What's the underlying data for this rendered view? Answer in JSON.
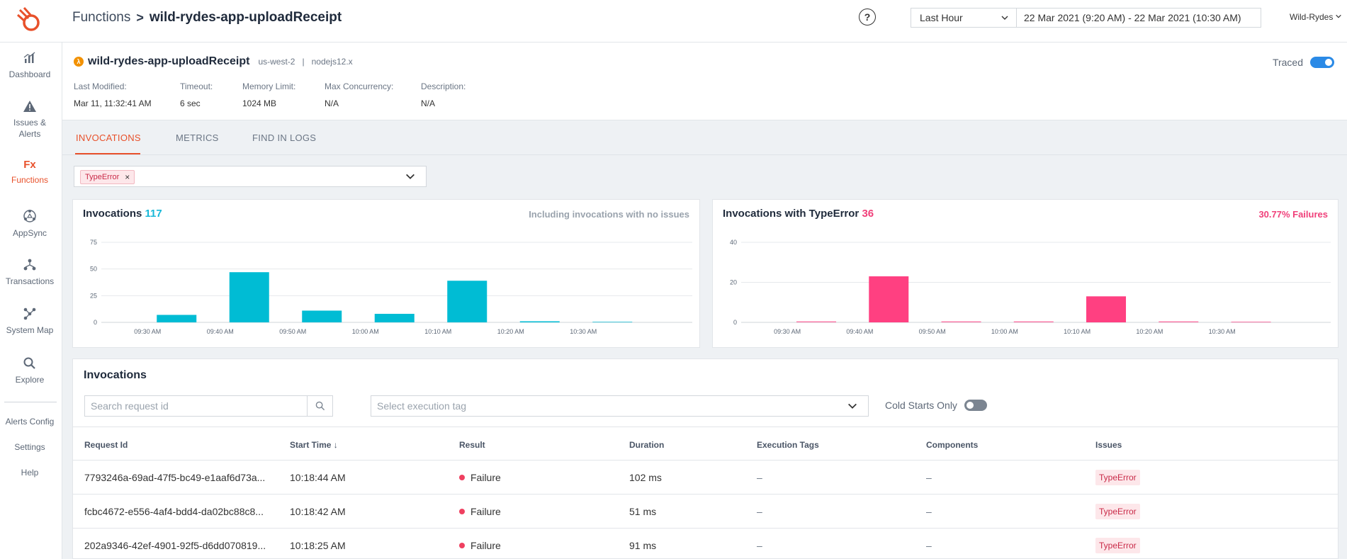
{
  "header": {
    "breadcrumb_root": "Functions",
    "breadcrumb_sep": ">",
    "breadcrumb_current": "wild-rydes-app-uploadReceipt",
    "help_label": "?",
    "range_value": "Last Hour",
    "date_range": "22 Mar 2021 (9:20 AM) - 22 Mar 2021 (10:30 AM)",
    "account": "Wild-Rydes"
  },
  "sidebar": {
    "items": [
      {
        "label": "Dashboard",
        "icon": "bar-chart-icon"
      },
      {
        "label": "Issues &",
        "label2": "Alerts",
        "icon": "warning-icon"
      },
      {
        "label": "Functions",
        "icon": "fx-icon",
        "icon_text": "Fx"
      },
      {
        "label": "AppSync",
        "icon": "appsync-icon"
      },
      {
        "label": "Transactions",
        "icon": "transactions-icon"
      },
      {
        "label": "System Map",
        "icon": "system-map-icon"
      },
      {
        "label": "Explore",
        "icon": "search-icon"
      }
    ],
    "links": [
      "Alerts Config",
      "Settings",
      "Help"
    ]
  },
  "function": {
    "lambda_glyph": "λ",
    "name": "wild-rydes-app-uploadReceipt",
    "region": "us-west-2",
    "sep": "|",
    "runtime": "nodejs12.x",
    "traced_label": "Traced",
    "meta": [
      {
        "label": "Last Modified:",
        "value": "Mar 11, 11:32:41 AM"
      },
      {
        "label": "Timeout:",
        "value": "6 sec"
      },
      {
        "label": "Memory Limit:",
        "value": "1024 MB"
      },
      {
        "label": "Max Concurrency:",
        "value": "N/A"
      },
      {
        "label": "Description:",
        "value": "N/A"
      }
    ]
  },
  "tabs": [
    "INVOCATIONS",
    "METRICS",
    "FIND IN LOGS"
  ],
  "filter": {
    "chip": "TypeError",
    "chip_close": "×"
  },
  "colors": {
    "accent": "#e8512b",
    "cyan": "#18b8d8",
    "pink": "#ff4081"
  },
  "chart_data": [
    {
      "type": "bar",
      "title": "Invocations",
      "count": "117",
      "note": "Including invocations with no issues",
      "color": "#00bcd4",
      "ylim": [
        0,
        75
      ],
      "yticks": [
        0,
        25,
        50,
        75
      ],
      "xticks": [
        "09:30 AM",
        "09:40 AM",
        "09:50 AM",
        "10:00 AM",
        "10:10 AM",
        "10:20 AM",
        "10:30 AM"
      ],
      "bars": [
        {
          "x": "09:34",
          "value": 7
        },
        {
          "x": "09:44",
          "value": 47
        },
        {
          "x": "09:54",
          "value": 11
        },
        {
          "x": "10:04",
          "value": 8
        },
        {
          "x": "10:14",
          "value": 39
        },
        {
          "x": "10:24",
          "value": 1
        },
        {
          "x": "10:34",
          "value": 0.5
        }
      ]
    },
    {
      "type": "bar",
      "title": "Invocations with TypeError",
      "count": "36",
      "note": "30.77% Failures",
      "color": "#ff4081",
      "ylim": [
        0,
        40
      ],
      "yticks": [
        0,
        20,
        40
      ],
      "xticks": [
        "09:30 AM",
        "09:40 AM",
        "09:50 AM",
        "10:00 AM",
        "10:10 AM",
        "10:20 AM",
        "10:30 AM"
      ],
      "bars": [
        {
          "x": "09:34",
          "value": 0.5
        },
        {
          "x": "09:44",
          "value": 23
        },
        {
          "x": "09:54",
          "value": 0.5
        },
        {
          "x": "10:04",
          "value": 0.5
        },
        {
          "x": "10:14",
          "value": 13
        },
        {
          "x": "10:24",
          "value": 0.5
        },
        {
          "x": "10:34",
          "value": 0.3
        }
      ]
    }
  ],
  "table": {
    "title": "Invocations",
    "search_placeholder": "Search request id",
    "tag_placeholder": "Select execution tag",
    "cold_starts_label": "Cold Starts Only",
    "columns": [
      "Request Id",
      "Start Time ↓",
      "Result",
      "Duration",
      "Execution Tags",
      "Components",
      "Issues"
    ],
    "rows": [
      {
        "id": "7793246a-69ad-47f5-bc49-e1aaf6d73a...",
        "start": "10:18:44 AM",
        "result": "Failure",
        "duration": "102 ms",
        "tags": "–",
        "components": "–",
        "issue": "TypeError"
      },
      {
        "id": "fcbc4672-e556-4af4-bdd4-da02bc88c8...",
        "start": "10:18:42 AM",
        "result": "Failure",
        "duration": "51 ms",
        "tags": "–",
        "components": "–",
        "issue": "TypeError"
      },
      {
        "id": "202a9346-42ef-4901-92f5-d6dd070819...",
        "start": "10:18:25 AM",
        "result": "Failure",
        "duration": "91 ms",
        "tags": "–",
        "components": "–",
        "issue": "TypeError"
      }
    ]
  }
}
